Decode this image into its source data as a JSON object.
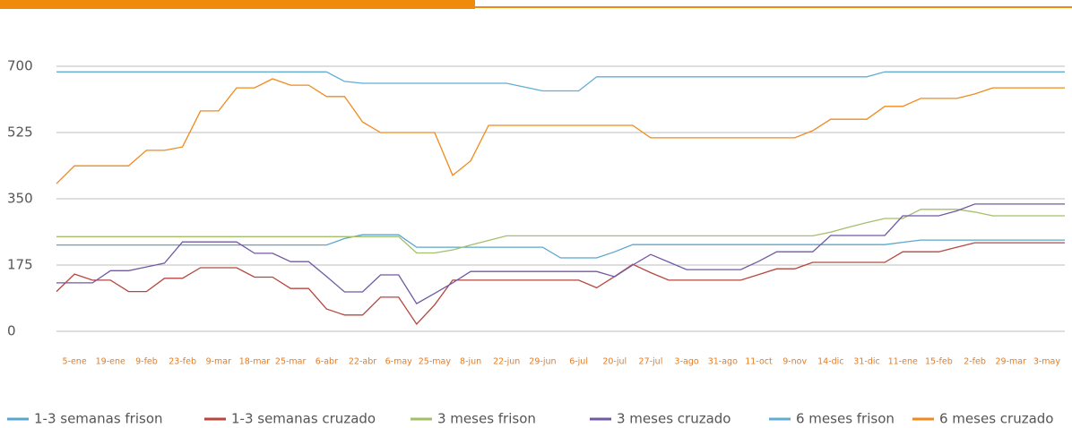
{
  "chart_data": {
    "type": "line",
    "categories": [
      null,
      "5-ene",
      null,
      "19-ene",
      null,
      "9-feb",
      null,
      "23-feb",
      null,
      "9-mar",
      null,
      "18-mar",
      null,
      "25-mar",
      null,
      "6-abr",
      null,
      "22-abr",
      null,
      "6-may",
      null,
      "25-may",
      null,
      "8-jun",
      null,
      "22-jun",
      null,
      "29-jun",
      null,
      "6-jul",
      null,
      "20-jul",
      null,
      "27-jul",
      null,
      "3-ago",
      null,
      "31-ago",
      null,
      "11-oct",
      null,
      "9-nov",
      null,
      "14-dic",
      null,
      "31-dic",
      null,
      "11-ene",
      null,
      "15-feb",
      null,
      "2-feb",
      null,
      "29-mar",
      null,
      "3-may",
      null
    ],
    "ylim": [
      0,
      700
    ],
    "yticks": [
      0,
      175,
      350,
      525,
      700
    ],
    "grid": true,
    "series": [
      {
        "name": "1-3 semanas frison",
        "color": "#5aa6cf",
        "values": [
          228,
          228,
          228,
          228,
          228,
          228,
          228,
          228,
          228,
          228,
          228,
          228,
          228,
          228,
          228,
          228,
          245,
          255,
          255,
          255,
          222,
          222,
          222,
          222,
          222,
          222,
          222,
          222,
          194,
          194,
          194,
          210,
          229,
          229,
          229,
          229,
          229,
          229,
          229,
          229,
          229,
          229,
          229,
          229,
          229,
          229,
          229,
          235,
          241,
          241,
          241,
          241,
          241,
          241,
          241,
          241,
          241
        ]
      },
      {
        "name": "1-3 semanas cruzado",
        "color": "#b5473e",
        "values": [
          105,
          151,
          135,
          135,
          105,
          105,
          140,
          140,
          168,
          168,
          168,
          143,
          143,
          113,
          113,
          59,
          43,
          43,
          90,
          90,
          19,
          70,
          135,
          135,
          135,
          135,
          135,
          135,
          135,
          135,
          115,
          145,
          177,
          155,
          135,
          135,
          135,
          135,
          135,
          150,
          165,
          165,
          182,
          182,
          182,
          182,
          182,
          210,
          210,
          210,
          222,
          234,
          234,
          234,
          234,
          234,
          234
        ]
      },
      {
        "name": "3 meses frison",
        "color": "#a3bf6a",
        "values": [
          250,
          250,
          250,
          250,
          250,
          250,
          250,
          250,
          250,
          250,
          250,
          250,
          250,
          250,
          250,
          250,
          250,
          250,
          250,
          250,
          207,
          207,
          215,
          228,
          240,
          252,
          252,
          252,
          252,
          252,
          252,
          252,
          252,
          252,
          252,
          252,
          252,
          252,
          252,
          252,
          252,
          252,
          252,
          262,
          275,
          287,
          298,
          298,
          322,
          322,
          322,
          315,
          305,
          305,
          305,
          305,
          305
        ]
      },
      {
        "name": "3 meses cruzado",
        "color": "#7159a3",
        "values": [
          128,
          128,
          128,
          160,
          160,
          170,
          180,
          236,
          236,
          236,
          236,
          206,
          206,
          184,
          184,
          145,
          104,
          104,
          149,
          149,
          73,
          100,
          128,
          158,
          158,
          158,
          158,
          158,
          158,
          158,
          158,
          144,
          175,
          203,
          183,
          163,
          163,
          163,
          163,
          185,
          210,
          210,
          210,
          253,
          253,
          253,
          253,
          305,
          305,
          305,
          318,
          336,
          336,
          336,
          336,
          336,
          336
        ]
      },
      {
        "name": "6 meses frison",
        "color": "#62aed3",
        "values": [
          685,
          685,
          685,
          685,
          685,
          685,
          685,
          685,
          685,
          685,
          685,
          685,
          685,
          685,
          685,
          685,
          660,
          655,
          655,
          655,
          655,
          655,
          655,
          655,
          655,
          655,
          645,
          635,
          635,
          635,
          672,
          672,
          672,
          672,
          672,
          672,
          672,
          672,
          672,
          672,
          672,
          672,
          672,
          672,
          672,
          672,
          685,
          685,
          685,
          685,
          685,
          685,
          685,
          685,
          685,
          685,
          685
        ]
      },
      {
        "name": "6 meses cruzado",
        "color": "#f08a1c",
        "values": [
          390,
          437,
          437,
          437,
          437,
          478,
          478,
          487,
          582,
          582,
          643,
          643,
          667,
          650,
          650,
          620,
          620,
          553,
          525,
          525,
          525,
          525,
          412,
          450,
          544,
          544,
          544,
          544,
          544,
          544,
          544,
          544,
          544,
          511,
          511,
          511,
          511,
          511,
          511,
          511,
          511,
          511,
          530,
          560,
          560,
          560,
          594,
          594,
          615,
          615,
          615,
          627,
          643,
          643,
          643,
          643,
          643
        ]
      }
    ]
  }
}
